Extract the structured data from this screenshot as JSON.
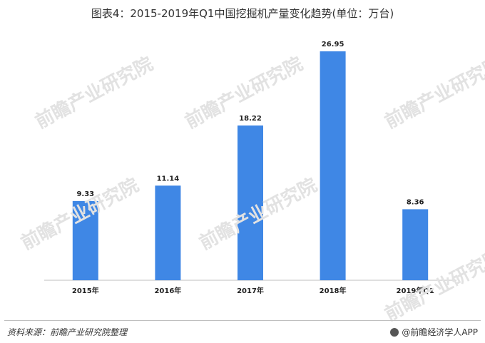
{
  "title": "图表4：2015-2019年Q1中国挖掘机产量变化趋势(单位：万台)",
  "source": "资料来源：前瞻产业研究院整理",
  "brand": "@前瞻经济学人APP",
  "watermark": "前瞻产业研究院",
  "colors": {
    "bar": "#3f87e5",
    "axis": "#bfbfbf"
  },
  "chart_data": {
    "type": "bar",
    "title": "图表4：2015-2019年Q1中国挖掘机产量变化趋势(单位：万台)",
    "categories": [
      "2015年",
      "2016年",
      "2017年",
      "2018年",
      "2019年Q1"
    ],
    "values": [
      9.33,
      11.14,
      18.22,
      26.95,
      8.36
    ],
    "value_labels": [
      "9.33",
      "11.14",
      "18.22",
      "26.95",
      "8.36"
    ],
    "ylim": [
      0,
      30
    ],
    "grid": false,
    "legend": "none"
  }
}
